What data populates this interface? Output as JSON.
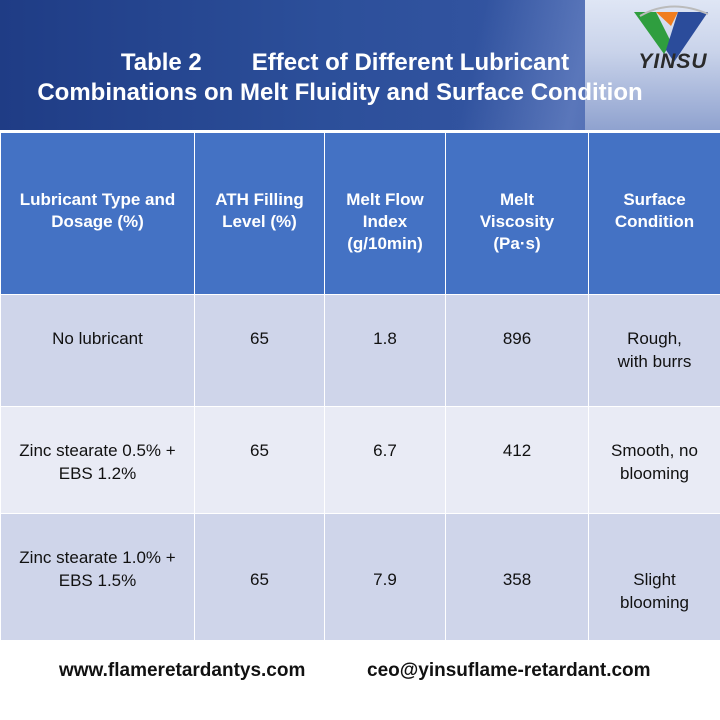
{
  "title": {
    "line1_label": "Table 2",
    "line1_rest": "Effect of Different Lubricant",
    "line2": "Combinations on Melt Fluidity and Surface Condition"
  },
  "logo": {
    "text": "YINSU",
    "colors": [
      "#2f9e3f",
      "#f07d1e",
      "#2b4c9b"
    ]
  },
  "table": {
    "headers": [
      "Lubricant Type and Dosage (%)",
      "ATH Filling Level (%)",
      "Melt Flow Index (g/10min)",
      "Melt Viscosity (Pa·s)",
      "Surface Condition"
    ],
    "rows": [
      [
        "No lubricant",
        "65",
        "1.8",
        "896",
        "Rough, with burrs"
      ],
      [
        "Zinc stearate 0.5% + EBS 1.2%",
        "65",
        "6.7",
        "412",
        "Smooth, no blooming"
      ],
      [
        "Zinc stearate 1.0% + EBS 1.5%",
        "65",
        "7.9",
        "358",
        "Slight blooming"
      ]
    ],
    "colors": {
      "header": "#4472c4",
      "row_dark": "#cfd5ea",
      "row_light": "#e9ebf5"
    }
  },
  "footer": {
    "website": "www.flameretardantys.com",
    "email": "ceo@yinsuflame-retardant.com"
  }
}
